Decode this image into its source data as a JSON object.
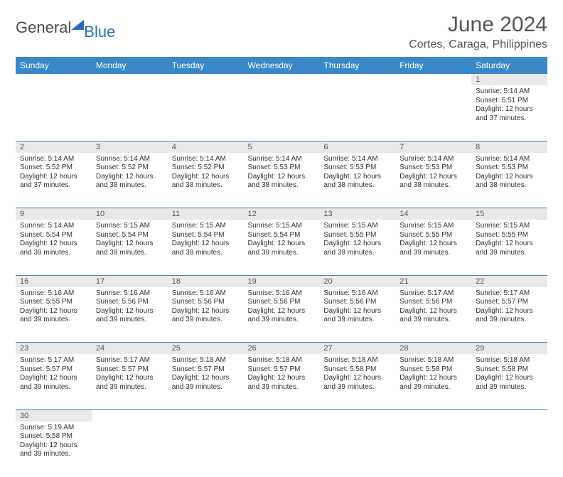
{
  "logo": {
    "text_general": "General",
    "text_blue": "Blue"
  },
  "title": "June 2024",
  "location": "Cortes, Caraga, Philippines",
  "day_headers": [
    "Sunday",
    "Monday",
    "Tuesday",
    "Wednesday",
    "Thursday",
    "Friday",
    "Saturday"
  ],
  "colors": {
    "header_bg": "#3b88c9",
    "header_fg": "#ffffff",
    "daynum_bg": "#e9e9e9",
    "border": "#3b88c9",
    "logo_blue": "#2a6fb5"
  },
  "weeks": [
    [
      {
        "empty": true
      },
      {
        "empty": true
      },
      {
        "empty": true
      },
      {
        "empty": true
      },
      {
        "empty": true
      },
      {
        "empty": true
      },
      {
        "day": "1",
        "sunrise": "Sunrise: 5:14 AM",
        "sunset": "Sunset: 5:51 PM",
        "daylight": "Daylight: 12 hours and 37 minutes."
      }
    ],
    [
      {
        "day": "2",
        "sunrise": "Sunrise: 5:14 AM",
        "sunset": "Sunset: 5:52 PM",
        "daylight": "Daylight: 12 hours and 37 minutes."
      },
      {
        "day": "3",
        "sunrise": "Sunrise: 5:14 AM",
        "sunset": "Sunset: 5:52 PM",
        "daylight": "Daylight: 12 hours and 38 minutes."
      },
      {
        "day": "4",
        "sunrise": "Sunrise: 5:14 AM",
        "sunset": "Sunset: 5:52 PM",
        "daylight": "Daylight: 12 hours and 38 minutes."
      },
      {
        "day": "5",
        "sunrise": "Sunrise: 5:14 AM",
        "sunset": "Sunset: 5:53 PM",
        "daylight": "Daylight: 12 hours and 38 minutes."
      },
      {
        "day": "6",
        "sunrise": "Sunrise: 5:14 AM",
        "sunset": "Sunset: 5:53 PM",
        "daylight": "Daylight: 12 hours and 38 minutes."
      },
      {
        "day": "7",
        "sunrise": "Sunrise: 5:14 AM",
        "sunset": "Sunset: 5:53 PM",
        "daylight": "Daylight: 12 hours and 38 minutes."
      },
      {
        "day": "8",
        "sunrise": "Sunrise: 5:14 AM",
        "sunset": "Sunset: 5:53 PM",
        "daylight": "Daylight: 12 hours and 38 minutes."
      }
    ],
    [
      {
        "day": "9",
        "sunrise": "Sunrise: 5:14 AM",
        "sunset": "Sunset: 5:54 PM",
        "daylight": "Daylight: 12 hours and 39 minutes."
      },
      {
        "day": "10",
        "sunrise": "Sunrise: 5:15 AM",
        "sunset": "Sunset: 5:54 PM",
        "daylight": "Daylight: 12 hours and 39 minutes."
      },
      {
        "day": "11",
        "sunrise": "Sunrise: 5:15 AM",
        "sunset": "Sunset: 5:54 PM",
        "daylight": "Daylight: 12 hours and 39 minutes."
      },
      {
        "day": "12",
        "sunrise": "Sunrise: 5:15 AM",
        "sunset": "Sunset: 5:54 PM",
        "daylight": "Daylight: 12 hours and 39 minutes."
      },
      {
        "day": "13",
        "sunrise": "Sunrise: 5:15 AM",
        "sunset": "Sunset: 5:55 PM",
        "daylight": "Daylight: 12 hours and 39 minutes."
      },
      {
        "day": "14",
        "sunrise": "Sunrise: 5:15 AM",
        "sunset": "Sunset: 5:55 PM",
        "daylight": "Daylight: 12 hours and 39 minutes."
      },
      {
        "day": "15",
        "sunrise": "Sunrise: 5:15 AM",
        "sunset": "Sunset: 5:55 PM",
        "daylight": "Daylight: 12 hours and 39 minutes."
      }
    ],
    [
      {
        "day": "16",
        "sunrise": "Sunrise: 5:16 AM",
        "sunset": "Sunset: 5:55 PM",
        "daylight": "Daylight: 12 hours and 39 minutes."
      },
      {
        "day": "17",
        "sunrise": "Sunrise: 5:16 AM",
        "sunset": "Sunset: 5:56 PM",
        "daylight": "Daylight: 12 hours and 39 minutes."
      },
      {
        "day": "18",
        "sunrise": "Sunrise: 5:16 AM",
        "sunset": "Sunset: 5:56 PM",
        "daylight": "Daylight: 12 hours and 39 minutes."
      },
      {
        "day": "19",
        "sunrise": "Sunrise: 5:16 AM",
        "sunset": "Sunset: 5:56 PM",
        "daylight": "Daylight: 12 hours and 39 minutes."
      },
      {
        "day": "20",
        "sunrise": "Sunrise: 5:16 AM",
        "sunset": "Sunset: 5:56 PM",
        "daylight": "Daylight: 12 hours and 39 minutes."
      },
      {
        "day": "21",
        "sunrise": "Sunrise: 5:17 AM",
        "sunset": "Sunset: 5:56 PM",
        "daylight": "Daylight: 12 hours and 39 minutes."
      },
      {
        "day": "22",
        "sunrise": "Sunrise: 5:17 AM",
        "sunset": "Sunset: 5:57 PM",
        "daylight": "Daylight: 12 hours and 39 minutes."
      }
    ],
    [
      {
        "day": "23",
        "sunrise": "Sunrise: 5:17 AM",
        "sunset": "Sunset: 5:57 PM",
        "daylight": "Daylight: 12 hours and 39 minutes."
      },
      {
        "day": "24",
        "sunrise": "Sunrise: 5:17 AM",
        "sunset": "Sunset: 5:57 PM",
        "daylight": "Daylight: 12 hours and 39 minutes."
      },
      {
        "day": "25",
        "sunrise": "Sunrise: 5:18 AM",
        "sunset": "Sunset: 5:57 PM",
        "daylight": "Daylight: 12 hours and 39 minutes."
      },
      {
        "day": "26",
        "sunrise": "Sunrise: 5:18 AM",
        "sunset": "Sunset: 5:57 PM",
        "daylight": "Daylight: 12 hours and 39 minutes."
      },
      {
        "day": "27",
        "sunrise": "Sunrise: 5:18 AM",
        "sunset": "Sunset: 5:58 PM",
        "daylight": "Daylight: 12 hours and 39 minutes."
      },
      {
        "day": "28",
        "sunrise": "Sunrise: 5:18 AM",
        "sunset": "Sunset: 5:58 PM",
        "daylight": "Daylight: 12 hours and 39 minutes."
      },
      {
        "day": "29",
        "sunrise": "Sunrise: 5:18 AM",
        "sunset": "Sunset: 5:58 PM",
        "daylight": "Daylight: 12 hours and 39 minutes."
      }
    ],
    [
      {
        "day": "30",
        "sunrise": "Sunrise: 5:19 AM",
        "sunset": "Sunset: 5:58 PM",
        "daylight": "Daylight: 12 hours and 39 minutes."
      },
      {
        "empty": true
      },
      {
        "empty": true
      },
      {
        "empty": true
      },
      {
        "empty": true
      },
      {
        "empty": true
      },
      {
        "empty": true
      }
    ]
  ]
}
